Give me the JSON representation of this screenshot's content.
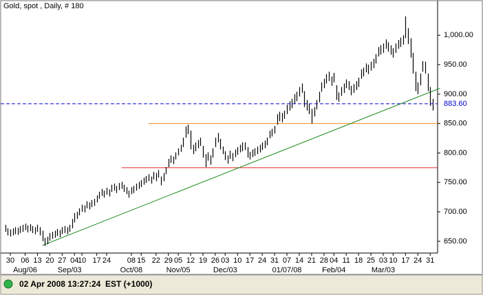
{
  "chart_data": {
    "type": "hl",
    "title": "Gold, spot , Daily, # 180",
    "status": "02 Apr 2008 13:27:24  EST (+1000)",
    "color": "#000000",
    "xlim": [
      -0.5,
      175
    ],
    "ylim": [
      630,
      1054
    ],
    "high": [
      678,
      672,
      670,
      672,
      674,
      673,
      676,
      678,
      680,
      677,
      679,
      676,
      674,
      678,
      674,
      668,
      656,
      658,
      664,
      666,
      668,
      671,
      669,
      674,
      676,
      674,
      678,
      688,
      698,
      700,
      706,
      712,
      711,
      718,
      716,
      720,
      722,
      728,
      734,
      739,
      736,
      741,
      738,
      746,
      748,
      744,
      749,
      751,
      746,
      742,
      736,
      742,
      744,
      748,
      751,
      754,
      758,
      761,
      764,
      760,
      768,
      766,
      771,
      760,
      766,
      776,
      790,
      796,
      794,
      801,
      808,
      814,
      826,
      845,
      848,
      838,
      814,
      818,
      822,
      826,
      812,
      798,
      801,
      796,
      808,
      826,
      834,
      824,
      811,
      803,
      796,
      804,
      800,
      806,
      810,
      814,
      818,
      818,
      810,
      802,
      806,
      808,
      811,
      814,
      818,
      821,
      826,
      838,
      841,
      846,
      866,
      870,
      868,
      872,
      882,
      888,
      892,
      900,
      904,
      912,
      918,
      905,
      890,
      884,
      875,
      878,
      890,
      904,
      920,
      926,
      934,
      938,
      930,
      936,
      915,
      903,
      912,
      918,
      925,
      922,
      914,
      917,
      922,
      928,
      942,
      945,
      952,
      950,
      955,
      960,
      968,
      980,
      983,
      986,
      993,
      988,
      983,
      978,
      986,
      992,
      996,
      1000,
      1032,
      1012,
      995,
      970,
      938,
      920,
      935,
      956,
      955,
      935,
      912,
      892
    ],
    "low": [
      666,
      660,
      658,
      660,
      662,
      661,
      664,
      666,
      669,
      665,
      667,
      664,
      662,
      666,
      660,
      650,
      642,
      645,
      651,
      654,
      656,
      659,
      657,
      662,
      664,
      662,
      666,
      672,
      682,
      688,
      694,
      700,
      699,
      706,
      704,
      708,
      710,
      716,
      722,
      727,
      724,
      729,
      726,
      734,
      736,
      732,
      737,
      739,
      734,
      730,
      724,
      730,
      732,
      736,
      739,
      742,
      746,
      749,
      752,
      748,
      755,
      752,
      758,
      745,
      752,
      764,
      776,
      783,
      781,
      789,
      796,
      802,
      810,
      826,
      832,
      806,
      798,
      803,
      808,
      812,
      792,
      776,
      787,
      780,
      792,
      810,
      818,
      806,
      798,
      788,
      782,
      790,
      786,
      793,
      797,
      801,
      803,
      805,
      792,
      789,
      793,
      795,
      798,
      801,
      805,
      808,
      813,
      825,
      828,
      833,
      848,
      854,
      852,
      858,
      866,
      872,
      876,
      884,
      888,
      896,
      902,
      878,
      872,
      866,
      850,
      862,
      874,
      886,
      904,
      910,
      918,
      922,
      914,
      920,
      890,
      887,
      897,
      902,
      910,
      907,
      898,
      902,
      907,
      912,
      926,
      930,
      937,
      934,
      940,
      944,
      952,
      964,
      967,
      970,
      977,
      972,
      967,
      962,
      970,
      977,
      980,
      984,
      995,
      985,
      962,
      935,
      905,
      900,
      915,
      938,
      935,
      905,
      880,
      872
    ],
    "yticks": [
      {
        "value": 650,
        "label": "650.00"
      },
      {
        "value": 700,
        "label": "700.00"
      },
      {
        "value": 750,
        "label": "750.00"
      },
      {
        "value": 800,
        "label": "800.00"
      },
      {
        "value": 850,
        "label": "850.00"
      },
      {
        "value": 900,
        "label": "900.00"
      },
      {
        "value": 950,
        "label": "950.00"
      },
      {
        "value": 1000,
        "label": "1,000.00"
      }
    ],
    "xticks": [
      {
        "value": 2,
        "label": "30"
      },
      {
        "value": 8,
        "label": "06"
      },
      {
        "value": 13,
        "label": "13"
      },
      {
        "value": 18,
        "label": "20"
      },
      {
        "value": 23,
        "label": "27"
      },
      {
        "value": 28,
        "label": "04"
      },
      {
        "value": 31,
        "label": "10"
      },
      {
        "value": 37,
        "label": "17"
      },
      {
        "value": 41,
        "label": "24"
      },
      {
        "value": 51,
        "label": "08"
      },
      {
        "value": 55,
        "label": "15"
      },
      {
        "value": 61,
        "label": "22"
      },
      {
        "value": 66,
        "label": "29"
      },
      {
        "value": 70,
        "label": "05"
      },
      {
        "value": 75,
        "label": "12"
      },
      {
        "value": 80,
        "label": "19"
      },
      {
        "value": 85,
        "label": "26"
      },
      {
        "value": 89,
        "label": "03"
      },
      {
        "value": 94,
        "label": "10"
      },
      {
        "value": 99,
        "label": "17"
      },
      {
        "value": 104,
        "label": "24"
      },
      {
        "value": 109,
        "label": "31"
      },
      {
        "value": 114,
        "label": "07"
      },
      {
        "value": 119,
        "label": "14"
      },
      {
        "value": 124,
        "label": "21"
      },
      {
        "value": 129,
        "label": "28"
      },
      {
        "value": 133,
        "label": "04"
      },
      {
        "value": 138,
        "label": "11"
      },
      {
        "value": 143,
        "label": "18"
      },
      {
        "value": 148,
        "label": "25"
      },
      {
        "value": 153,
        "label": "03"
      },
      {
        "value": 157,
        "label": "10"
      },
      {
        "value": 162,
        "label": "17"
      },
      {
        "value": 167,
        "label": "24"
      },
      {
        "value": 172,
        "label": "31"
      }
    ],
    "month_labels": [
      {
        "value": 8,
        "label": "Aug/06"
      },
      {
        "value": 26,
        "label": "Sep/03"
      },
      {
        "value": 51,
        "label": "Oct/08"
      },
      {
        "value": 70,
        "label": "Nov/05"
      },
      {
        "value": 89,
        "label": "Dec/03"
      },
      {
        "value": 114,
        "label": "01/07/08"
      },
      {
        "value": 133,
        "label": "Feb/04"
      },
      {
        "value": 153,
        "label": "Mar/03"
      }
    ],
    "lines": [
      {
        "value": 850,
        "from": 58,
        "color": "#ff8c1a"
      },
      {
        "value": 775,
        "from": 47,
        "color": "#e02020"
      }
    ],
    "trend": {
      "x": [
        15,
        176
      ],
      "y": [
        643,
        910
      ],
      "color": "#1a8a1a"
    },
    "last": {
      "value": 883.6,
      "label": "883.60",
      "color": "#0000cc"
    }
  }
}
